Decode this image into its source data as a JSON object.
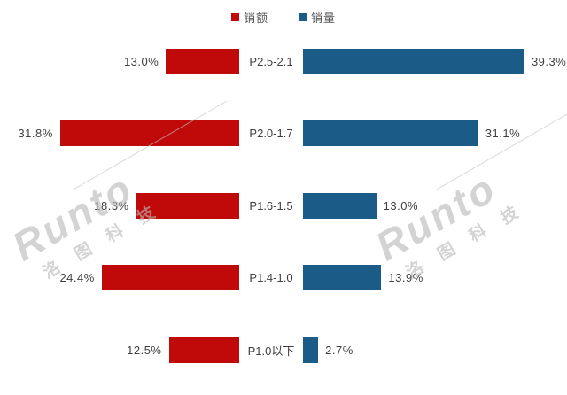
{
  "legend": {
    "items": [
      {
        "label": "销额",
        "color": "#c00a0a"
      },
      {
        "label": "销量",
        "color": "#1a5b88"
      }
    ]
  },
  "chart_data": {
    "type": "bar",
    "variant": "bidirectional-horizontal",
    "categories": [
      "P2.5-2.1",
      "P2.0-1.7",
      "P1.6-1.5",
      "P1.4-1.0",
      "P1.0以下"
    ],
    "series": [
      {
        "name": "销额",
        "side": "left",
        "color": "#c00a0a",
        "values": [
          13.0,
          31.8,
          18.3,
          24.4,
          12.5
        ],
        "labels": [
          "13.0%",
          "31.8%",
          "18.3%",
          "24.4%",
          "12.5%"
        ]
      },
      {
        "name": "销量",
        "side": "right",
        "color": "#1a5b88",
        "values": [
          39.3,
          31.1,
          13.0,
          13.9,
          2.7
        ],
        "labels": [
          "39.3%",
          "31.1%",
          "13.0%",
          "13.9%",
          "2.7%"
        ]
      }
    ],
    "title": "",
    "xlabel": "",
    "ylabel": "",
    "value_unit": "%",
    "axis_max": 40,
    "grid": false,
    "legend_position": "top-center",
    "data_labels": "outside-ends"
  },
  "watermark": {
    "brand": "Runto",
    "company": "洛图科技"
  }
}
